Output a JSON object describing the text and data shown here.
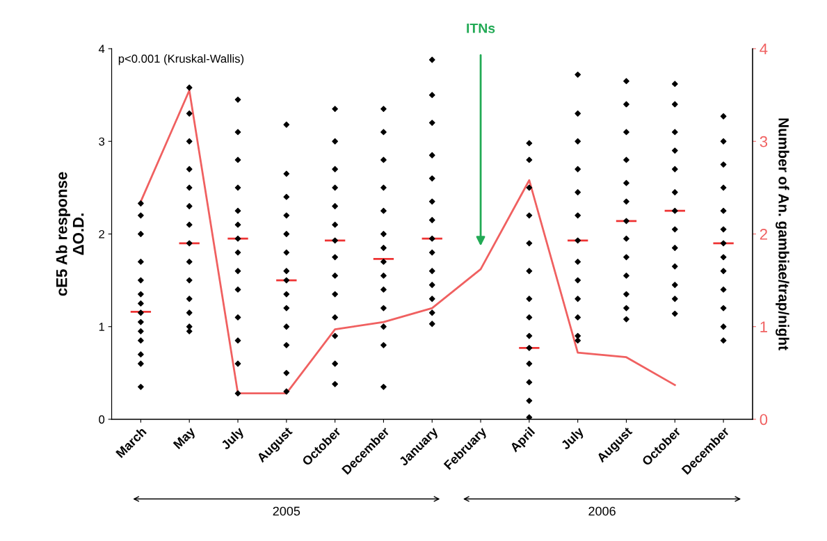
{
  "chart_data": {
    "type": "scatter",
    "categories": [
      "March",
      "May",
      "July",
      "August",
      "October",
      "December",
      "January",
      "February",
      "April",
      "July",
      "August",
      "October",
      "December"
    ],
    "ylabel": "cE5 Ab response\nΔO.D.",
    "y2label": "Number of An. gambiae/trap/night",
    "ylim": [
      0,
      4
    ],
    "yticks": [
      0,
      1,
      2,
      3,
      4
    ],
    "y2lim": [
      0,
      4
    ],
    "y2ticks": [
      0,
      1,
      2,
      3,
      4
    ],
    "grid": false,
    "legend": false,
    "marker": "diamond",
    "series": [
      {
        "color": "#000000",
        "values": [
          2.33,
          3.58,
          3.45,
          3.18,
          3.35,
          3.35,
          3.88,
          null,
          2.98,
          3.72,
          3.65,
          3.62,
          3.27
        ]
      },
      {
        "color": "#000000",
        "values": [
          2.2,
          3.3,
          3.1,
          2.65,
          3.0,
          3.1,
          3.5,
          null,
          2.8,
          3.3,
          3.4,
          3.4,
          3.0
        ]
      },
      {
        "color": "#000000",
        "values": [
          2.0,
          3.0,
          2.8,
          2.4,
          2.7,
          2.8,
          3.2,
          null,
          2.5,
          3.0,
          3.1,
          3.1,
          2.75
        ]
      },
      {
        "color": "#000000",
        "values": [
          1.7,
          2.7,
          2.5,
          2.2,
          2.5,
          2.5,
          2.85,
          null,
          2.2,
          2.7,
          2.8,
          2.9,
          2.5
        ]
      },
      {
        "color": "#000000",
        "values": [
          1.5,
          2.5,
          2.25,
          2.0,
          2.3,
          2.25,
          2.6,
          null,
          1.9,
          2.45,
          2.55,
          2.7,
          2.25
        ]
      },
      {
        "color": "#000000",
        "values": [
          1.35,
          2.3,
          2.1,
          1.8,
          2.1,
          2.0,
          2.35,
          null,
          1.6,
          2.2,
          2.35,
          2.45,
          2.05
        ]
      },
      {
        "color": "#000000",
        "values": [
          1.25,
          2.1,
          1.95,
          1.6,
          1.93,
          1.85,
          2.15,
          null,
          1.3,
          1.93,
          2.14,
          2.25,
          1.9
        ]
      },
      {
        "color": "#000000",
        "values": [
          1.15,
          1.9,
          1.8,
          1.5,
          1.75,
          1.7,
          1.95,
          null,
          1.1,
          1.7,
          1.95,
          2.05,
          1.75
        ]
      },
      {
        "color": "#000000",
        "values": [
          1.05,
          1.7,
          1.6,
          1.35,
          1.55,
          1.55,
          1.8,
          null,
          0.9,
          1.5,
          1.75,
          1.85,
          1.6
        ]
      },
      {
        "color": "#000000",
        "values": [
          0.95,
          1.5,
          1.4,
          1.2,
          1.35,
          1.4,
          1.6,
          null,
          0.77,
          1.3,
          1.55,
          1.65,
          1.4
        ]
      },
      {
        "color": "#000000",
        "values": [
          0.85,
          1.3,
          1.1,
          1.0,
          1.1,
          1.2,
          1.45,
          null,
          0.6,
          1.1,
          1.35,
          1.45,
          1.2
        ]
      },
      {
        "color": "#000000",
        "values": [
          0.7,
          1.15,
          0.85,
          0.8,
          0.9,
          1.0,
          1.3,
          null,
          0.4,
          0.9,
          1.2,
          1.3,
          1.0
        ]
      },
      {
        "color": "#000000",
        "values": [
          0.6,
          1.0,
          0.6,
          0.5,
          0.6,
          0.8,
          1.15,
          null,
          0.2,
          0.85,
          1.08,
          1.14,
          0.85
        ]
      },
      {
        "color": "#000000",
        "values": [
          0.35,
          0.95,
          0.28,
          0.3,
          0.38,
          0.35,
          1.03,
          null,
          0.02,
          null,
          null,
          null,
          null
        ]
      },
      {
        "type": "bar",
        "color": "#ee3333",
        "base": [
          1.16,
          1.9,
          1.95,
          1.5,
          1.93,
          1.73,
          1.95,
          null,
          0.77,
          1.93,
          2.14,
          2.25,
          1.9
        ],
        "values": [
          0,
          0,
          0,
          0,
          0,
          0,
          0,
          null,
          0,
          0,
          0,
          0,
          0
        ]
      },
      {
        "type": "line",
        "axis": "y2",
        "marker": "none",
        "line_style": "solid",
        "color": "#f06060",
        "values": [
          2.35,
          3.55,
          0.28,
          0.28,
          0.97,
          1.05,
          1.2,
          1.62,
          2.58,
          0.72,
          0.67,
          0.37,
          null
        ]
      }
    ],
    "annotations": [
      "p<0.001 (Kruskal-Wallis)",
      "ITNs",
      "2005",
      "2006"
    ]
  }
}
